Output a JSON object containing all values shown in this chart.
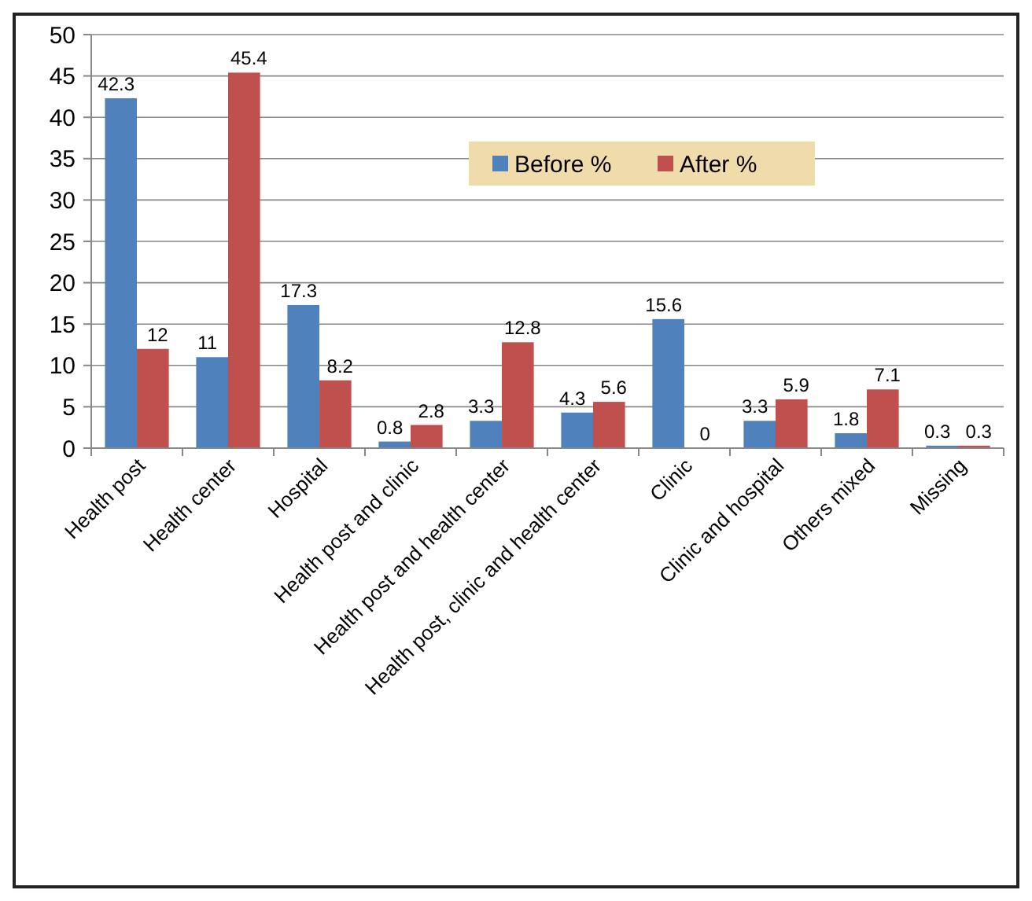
{
  "chart_data": {
    "type": "bar",
    "categories": [
      "Health post",
      "Health  center",
      "Hospital",
      "Health post and clinic",
      "Health post and health center",
      "Health post, clinic and health center",
      "Clinic",
      "Clinic and hospital",
      "Others mixed",
      "Missing"
    ],
    "series": [
      {
        "name": "Before %",
        "color": "#4f81bd",
        "values": [
          42.3,
          11,
          17.3,
          0.8,
          3.3,
          4.3,
          15.6,
          3.3,
          1.8,
          0.3
        ]
      },
      {
        "name": "After %",
        "color": "#c0504d",
        "values": [
          12,
          45.4,
          8.2,
          2.8,
          12.8,
          5.6,
          0,
          5.9,
          7.1,
          0.3
        ]
      }
    ],
    "ylim": [
      0,
      50
    ],
    "yticks": [
      0,
      5,
      10,
      15,
      20,
      25,
      30,
      35,
      40,
      45,
      50
    ],
    "grid": "y",
    "legend": "top",
    "data_labels": true
  }
}
